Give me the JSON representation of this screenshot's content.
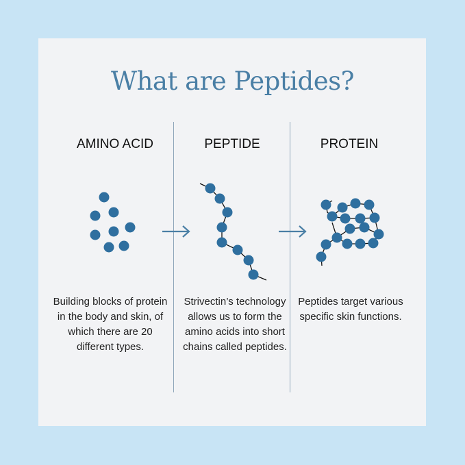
{
  "title": "What are Peptides?",
  "colors": {
    "background": "#c8e4f5",
    "card": "#f2f3f5",
    "accent": "#4a7fa5",
    "molecule": "#2f6f9f"
  },
  "columns": [
    {
      "heading": "AMINO ACID",
      "text": "Building blocks of protein in the body and skin, of which there are 20 different types."
    },
    {
      "heading": "PEPTIDE",
      "text": "Strivectin’s technology allows us to form the amino acids into short chains called peptides."
    },
    {
      "heading": "PROTEIN",
      "text": "Peptides target various specific skin functions."
    }
  ],
  "icons": [
    "amino-acid-dots-icon",
    "arrow-right-icon",
    "peptide-chain-icon",
    "arrow-right-icon",
    "protein-fold-icon"
  ]
}
